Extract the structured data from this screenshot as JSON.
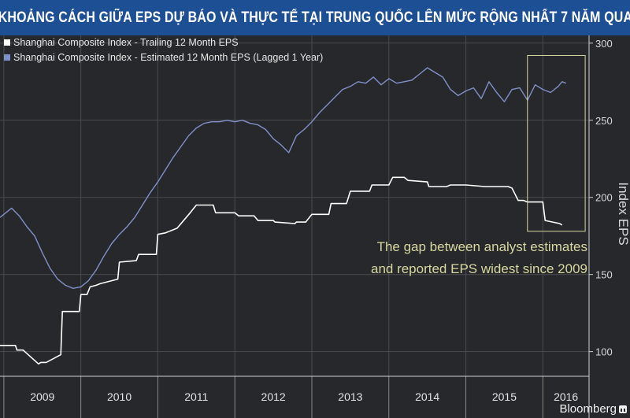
{
  "title": "KHOẢNG CÁCH GIỮA EPS DỰ BÁO VÀ THỰC TẾ TẠI TRUNG QUỐC LÊN MỨC RỘNG NHẤT 7 NĂM QUA",
  "brand": "Bloomberg",
  "brand_icon": "bar-chart-icon",
  "colors": {
    "title_background": "#1d4f95",
    "plot_background": "#27282b",
    "trailing_series": "#ffffff",
    "estimated_series": "#8090c8",
    "annotation": "#d8d7a0"
  },
  "chart_data": {
    "type": "line",
    "title": "KHOẢNG CÁCH GIỮA EPS DỰ BÁO VÀ THỰC TẾ TẠI TRUNG QUỐC LÊN MỨC RỘNG NHẤT 7 NĂM QUA",
    "ylabel": "Index EPS",
    "xlim": [
      2008.95,
      2016.6
    ],
    "ylim": [
      84,
      305
    ],
    "y_axis_position": "right",
    "yticks": [
      100,
      150,
      200,
      250,
      300
    ],
    "xticks": [
      "2009",
      "2010",
      "2011",
      "2012",
      "2013",
      "2014",
      "2015",
      "2016"
    ],
    "grid": true,
    "legend_position": "top-left",
    "series": [
      {
        "name": "Shanghai Composite Index - Trailing 12 Month EPS",
        "color": "#ffffff",
        "x": [
          2008.95,
          2009.15,
          2009.17,
          2009.25,
          2009.45,
          2009.48,
          2009.55,
          2009.74,
          2009.76,
          2009.98,
          2010.0,
          2010.08,
          2010.12,
          2010.2,
          2010.25,
          2010.48,
          2010.5,
          2010.72,
          2010.75,
          2010.98,
          2011.0,
          2011.1,
          2011.2,
          2011.25,
          2011.42,
          2011.5,
          2011.72,
          2011.75,
          2012.0,
          2012.05,
          2012.25,
          2012.3,
          2012.5,
          2012.52,
          2012.78,
          2012.8,
          2012.92,
          2013.0,
          2013.22,
          2013.25,
          2013.45,
          2013.5,
          2013.75,
          2013.78,
          2014.0,
          2014.05,
          2014.2,
          2014.25,
          2014.5,
          2014.52,
          2014.75,
          2014.8,
          2015.0,
          2015.25,
          2015.3,
          2015.55,
          2015.6,
          2015.68,
          2015.75,
          2015.8,
          2016.0,
          2016.03,
          2016.22,
          2016.25
        ],
        "y": [
          104,
          104,
          101,
          101,
          92,
          93,
          93,
          98,
          126,
          126,
          137,
          137,
          142,
          143,
          144,
          147,
          158,
          159,
          163,
          163,
          176,
          177,
          179,
          180,
          190,
          195,
          195,
          190,
          190,
          188,
          188,
          185,
          185,
          184,
          183,
          184,
          184,
          189,
          189,
          196,
          196,
          204,
          204,
          208,
          208,
          213,
          213,
          211,
          210,
          207,
          207,
          208,
          208,
          207,
          207,
          207,
          206,
          198,
          198,
          197,
          197,
          185,
          183,
          182
        ]
      },
      {
        "name": "Shanghai Composite Index - Estimated 12 Month EPS (Lagged 1 Year)",
        "color": "#8090c8",
        "x": [
          2008.95,
          2009.1,
          2009.2,
          2009.3,
          2009.4,
          2009.5,
          2009.6,
          2009.7,
          2009.8,
          2009.9,
          2010.0,
          2010.1,
          2010.2,
          2010.3,
          2010.4,
          2010.5,
          2010.6,
          2010.7,
          2010.8,
          2010.9,
          2011.0,
          2011.1,
          2011.2,
          2011.3,
          2011.4,
          2011.5,
          2011.6,
          2011.7,
          2011.8,
          2011.9,
          2012.0,
          2012.1,
          2012.2,
          2012.3,
          2012.4,
          2012.5,
          2012.6,
          2012.7,
          2012.8,
          2012.9,
          2013.0,
          2013.1,
          2013.2,
          2013.3,
          2013.4,
          2013.5,
          2013.6,
          2013.7,
          2013.8,
          2013.9,
          2014.0,
          2014.1,
          2014.2,
          2014.3,
          2014.4,
          2014.5,
          2014.6,
          2014.7,
          2014.8,
          2014.9,
          2015.0,
          2015.1,
          2015.2,
          2015.3,
          2015.4,
          2015.5,
          2015.6,
          2015.7,
          2015.8,
          2015.9,
          2016.0,
          2016.1,
          2016.2,
          2016.25,
          2016.3
        ],
        "y": [
          187,
          193,
          188,
          181,
          175,
          164,
          154,
          147,
          143,
          141,
          142,
          146,
          153,
          162,
          170,
          176,
          181,
          187,
          195,
          203,
          210,
          218,
          226,
          233,
          240,
          245,
          248,
          249,
          249,
          250,
          249,
          250,
          248,
          247,
          244,
          238,
          234,
          229,
          240,
          244,
          249,
          255,
          260,
          265,
          270,
          272,
          275,
          274,
          278,
          273,
          277,
          274,
          275,
          276,
          280,
          284,
          281,
          278,
          270,
          266,
          269,
          271,
          264,
          275,
          268,
          262,
          270,
          271,
          263,
          273,
          270,
          268,
          272,
          275,
          274
        ]
      }
    ],
    "highlight_box": {
      "x_range": [
        2015.8,
        2016.55
      ],
      "y_range": [
        178,
        292
      ]
    },
    "annotation": [
      "The gap between analyst estimates",
      "and reported EPS widest since 2009"
    ]
  }
}
